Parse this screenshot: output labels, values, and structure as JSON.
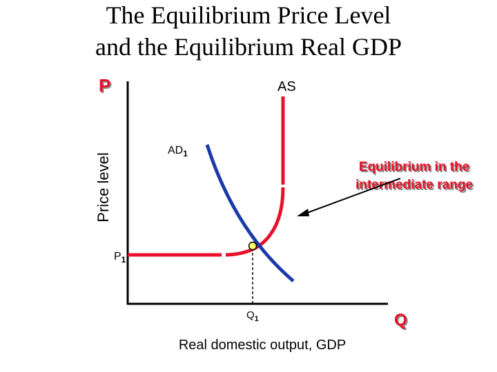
{
  "title": {
    "line1": "The Equilibrium Price Level",
    "line2": "and the Equilibrium Real GDP"
  },
  "axes": {
    "y_symbol": "P",
    "y_label": "Price level",
    "x_symbol": "Q",
    "x_label": "Real domestic output, GDP"
  },
  "curves": {
    "as": "AS",
    "ad": {
      "main": "AD",
      "sub": "1"
    }
  },
  "equilibrium": {
    "price": {
      "main": "P",
      "sub": "1"
    },
    "quantity": {
      "main": "Q",
      "sub": "1"
    }
  },
  "annotation": {
    "line1": "Equilibrium in the",
    "line2": "intermediate range"
  }
}
